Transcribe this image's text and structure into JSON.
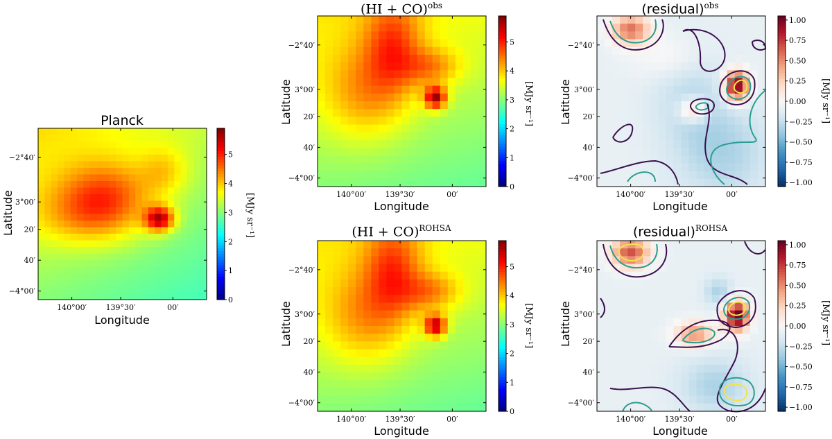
{
  "figure": {
    "panels": [
      {
        "id": "planck",
        "title": "Planck",
        "title_sup": "",
        "title_style": "sans",
        "xlabel": "Longitude",
        "ylabel": "Latitude",
        "xticks": [
          "140°00′",
          "139°30′",
          "00′"
        ],
        "yticks": [
          "−2°40′",
          "3°00′",
          "20′",
          "40′",
          "−4°00′"
        ],
        "colorbar": {
          "label": "[MJy sr⁻¹]",
          "ticks": [
            "0",
            "1",
            "2",
            "3",
            "4",
            "5"
          ],
          "colormap": "jet",
          "range": [
            0,
            5.9
          ]
        }
      },
      {
        "id": "hi-co-obs",
        "title": "(HI + CO)",
        "title_sup": "obs",
        "title_style": "serif",
        "xlabel": "Longitude",
        "ylabel": "Latitude",
        "xticks": [
          "140°00′",
          "139°30′",
          "00′"
        ],
        "yticks": [
          "−2°40′",
          "3°00′",
          "20′",
          "40′",
          "−4°00′"
        ],
        "colorbar": {
          "label": "[MJy sr⁻¹]",
          "ticks": [
            "0",
            "1",
            "2",
            "3",
            "4",
            "5"
          ],
          "colormap": "jet",
          "range": [
            0,
            5.9
          ]
        }
      },
      {
        "id": "residual-obs",
        "title": "(residual)",
        "title_sup": "obs",
        "title_style": "sans",
        "xlabel": "Longitude",
        "ylabel": "Latitude",
        "xticks": [
          "140°00′",
          "139°30′",
          "00′"
        ],
        "yticks": [
          "−2°40′",
          "3°00′",
          "20′",
          "40′",
          "−4°00′"
        ],
        "colorbar": {
          "label": "[MJy sr⁻¹]",
          "ticks": [
            "1.00",
            "0.75",
            "0.50",
            "0.25",
            "0.00",
            "−0.25",
            "−0.50",
            "−0.75",
            "−1.00"
          ],
          "colormap": "RdBu_r",
          "range": [
            -1.05,
            1.05
          ]
        }
      },
      {
        "id": "hi-co-rohsa",
        "title": "(HI + CO)",
        "title_sup": "ROHSA",
        "title_style": "serif",
        "xlabel": "Longitude",
        "ylabel": "Latitude",
        "xticks": [
          "140°00′",
          "139°30′",
          "00′"
        ],
        "yticks": [
          "−2°40′",
          "3°00′",
          "20′",
          "40′",
          "−4°00′"
        ],
        "colorbar": {
          "label": "[MJy sr⁻¹]",
          "ticks": [
            "0",
            "1",
            "2",
            "3",
            "4",
            "5"
          ],
          "colormap": "jet",
          "range": [
            0,
            5.9
          ]
        }
      },
      {
        "id": "residual-rohsa",
        "title": "(residual)",
        "title_sup": "ROHSA",
        "title_style": "sans",
        "xlabel": "Longitude",
        "ylabel": "Latitude",
        "xticks": [
          "140°00′",
          "139°30′",
          "00′"
        ],
        "yticks": [
          "−2°40′",
          "3°00′",
          "20′",
          "40′",
          "−4°00′"
        ],
        "colorbar": {
          "label": "[MJy sr⁻¹]",
          "ticks": [
            "1.00",
            "0.75",
            "0.50",
            "0.25",
            "0.00",
            "−0.25",
            "−0.50",
            "−0.75",
            "−1.00"
          ],
          "colormap": "RdBu_r",
          "range": [
            -1.05,
            1.05
          ]
        }
      }
    ]
  },
  "chart_data": [
    {
      "type": "heatmap",
      "title": "Planck",
      "xlabel": "Longitude",
      "ylabel": "Latitude",
      "zlabel": "[MJy sr⁻¹]",
      "zlim": [
        0,
        5.9
      ],
      "colormap": "jet",
      "features": [
        {
          "kind": "peak",
          "lon": "139°10′",
          "lat": "−3°15′",
          "value": 5.8
        },
        {
          "kind": "ridge",
          "lon": "139°40′",
          "lat": "−2°45′",
          "value": 4.5
        },
        {
          "kind": "background",
          "value": 3.5
        }
      ]
    },
    {
      "type": "heatmap",
      "title": "(HI + CO)^obs",
      "xlabel": "Longitude",
      "ylabel": "Latitude",
      "zlabel": "[MJy sr⁻¹]",
      "zlim": [
        0,
        5.9
      ],
      "colormap": "jet",
      "features": [
        {
          "kind": "peak",
          "lon": "139°12′",
          "lat": "−3°12′",
          "value": 5.9
        },
        {
          "kind": "ridge",
          "lon": "139°30′",
          "lat": "−2°40′",
          "value": 4.4
        },
        {
          "kind": "background",
          "value": 3.4
        }
      ]
    },
    {
      "type": "heatmap",
      "title": "(residual)^obs",
      "xlabel": "Longitude",
      "ylabel": "Latitude",
      "zlabel": "[MJy sr⁻¹]",
      "zlim": [
        -1.05,
        1.05
      ],
      "colormap": "RdBu_r",
      "features": [
        {
          "kind": "peak",
          "lon": "138°55′",
          "lat": "−3°05′",
          "value": 1.0
        },
        {
          "kind": "peak",
          "lon": "140°00′",
          "lat": "−2°35′",
          "value": 0.6
        },
        {
          "kind": "peak",
          "lon": "139°22′",
          "lat": "−3°15′",
          "value": 0.4
        },
        {
          "kind": "trough",
          "lon": "138°55′",
          "lat": "−3°45′",
          "value": -0.4
        }
      ]
    },
    {
      "type": "heatmap",
      "title": "(HI + CO)^ROHSA",
      "xlabel": "Longitude",
      "ylabel": "Latitude",
      "zlabel": "[MJy sr⁻¹]",
      "zlim": [
        0,
        5.9
      ],
      "colormap": "jet",
      "features": [
        {
          "kind": "peak",
          "lon": "139°12′",
          "lat": "−3°15′",
          "value": 5.8
        },
        {
          "kind": "ridge",
          "lon": "139°30′",
          "lat": "−2°40′",
          "value": 4.4
        },
        {
          "kind": "background",
          "value": 3.4
        }
      ]
    },
    {
      "type": "heatmap",
      "title": "(residual)^ROHSA",
      "xlabel": "Longitude",
      "ylabel": "Latitude",
      "zlabel": "[MJy sr⁻¹]",
      "zlim": [
        -1.05,
        1.05
      ],
      "colormap": "RdBu_r",
      "features": [
        {
          "kind": "peak",
          "lon": "138°55′",
          "lat": "−3°05′",
          "value": 1.0
        },
        {
          "kind": "peak",
          "lon": "140°00′",
          "lat": "−2°35′",
          "value": 0.6
        },
        {
          "kind": "peak",
          "lon": "139°22′",
          "lat": "−3°20′",
          "value": 0.5
        },
        {
          "kind": "trough",
          "lon": "139°00′",
          "lat": "−2°45′",
          "value": -0.4
        }
      ]
    }
  ]
}
